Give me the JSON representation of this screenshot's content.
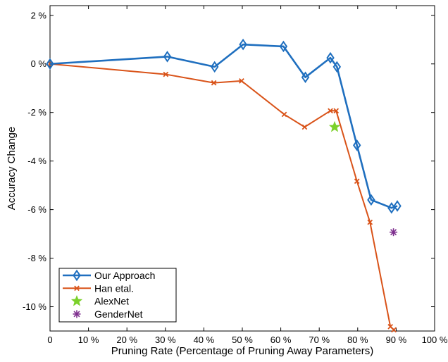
{
  "chart_data": {
    "type": "line",
    "xlabel": "Pruning Rate (Percentage of Pruning Away Parameters)",
    "ylabel": "Accuracy Change",
    "xlim": [
      0,
      100
    ],
    "ylim": [
      -11,
      2.4
    ],
    "x_ticks": [
      0,
      10,
      20,
      30,
      40,
      50,
      60,
      70,
      80,
      90,
      100
    ],
    "x_tick_labels": [
      "0",
      "10 %",
      "20 %",
      "30 %",
      "40 %",
      "50 %",
      "60 %",
      "70 %",
      "80 %",
      "90 %",
      "100 %"
    ],
    "y_ticks": [
      2,
      0,
      -2,
      -4,
      -6,
      -8,
      -10
    ],
    "y_tick_labels": [
      "2 %",
      "0 %",
      "-2 %",
      "-4 %",
      "-6 %",
      "-8 %",
      "-10 %"
    ],
    "grid": false,
    "legend_position": "bottom-left",
    "series": [
      {
        "name": "Our Approach",
        "style": "line-diamond",
        "color": "#1f6fbf",
        "x": [
          0,
          30.5,
          42.8,
          50.2,
          60.7,
          66.4,
          72.9,
          74.6,
          79.8,
          83.5,
          88.8,
          90.3
        ],
        "y": [
          0,
          0.3,
          -0.12,
          0.8,
          0.72,
          -0.55,
          0.25,
          -0.12,
          -3.35,
          -5.6,
          -5.93,
          -5.85
        ]
      },
      {
        "name": "Han etal.",
        "style": "line-x",
        "color": "#d95319",
        "x": [
          0,
          30.1,
          42.6,
          49.8,
          60.9,
          66.2,
          72.9,
          74.4,
          79.8,
          83.2,
          88.5,
          89.4
        ],
        "y": [
          0,
          -0.43,
          -0.78,
          -0.7,
          -2.08,
          -2.6,
          -1.93,
          -1.93,
          -4.83,
          -6.52,
          -10.82,
          -10.95
        ]
      },
      {
        "name": "AlexNet",
        "style": "star",
        "color": "#7bd12a",
        "x": [
          74.0
        ],
        "y": [
          -2.6
        ]
      },
      {
        "name": "GenderNet",
        "style": "asterisk",
        "color": "#7e2f8e",
        "x": [
          89.3
        ],
        "y": [
          -6.93
        ]
      }
    ]
  }
}
